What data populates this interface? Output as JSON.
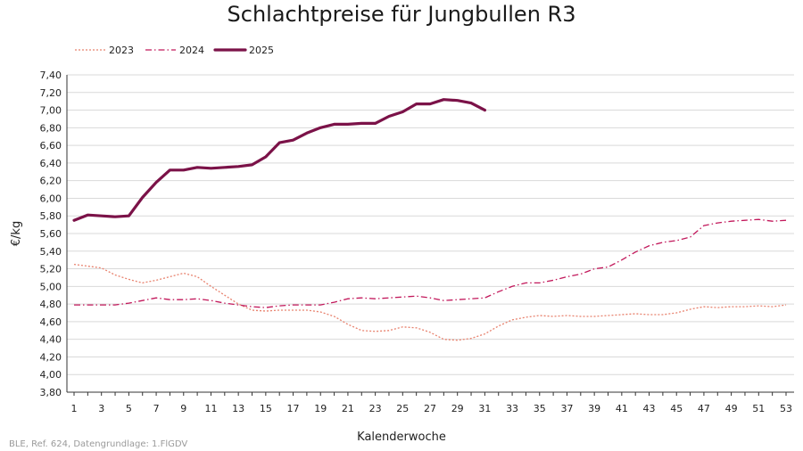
{
  "chart_data": {
    "type": "line",
    "title": "Schlachtpreise für Jungbullen R3",
    "xlabel": "Kalenderwoche",
    "ylabel": "€/kg",
    "xlim": [
      1,
      53
    ],
    "ylim": [
      3.8,
      7.4
    ],
    "y_ticks": [
      "3,80",
      "4,00",
      "4,20",
      "4,40",
      "4,60",
      "4,80",
      "5,00",
      "5,20",
      "5,40",
      "5,60",
      "5,80",
      "6,00",
      "6,20",
      "6,40",
      "6,60",
      "6,80",
      "7,00",
      "7,20",
      "7,40"
    ],
    "x_ticks": [
      "1",
      "3",
      "5",
      "7",
      "9",
      "11",
      "13",
      "15",
      "17",
      "19",
      "21",
      "23",
      "25",
      "27",
      "29",
      "31",
      "33",
      "35",
      "37",
      "39",
      "41",
      "43",
      "45",
      "47",
      "49",
      "51",
      "53"
    ],
    "grid": "horizontal",
    "legend_position": "top-left",
    "series": [
      {
        "name": "2023",
        "color": "#e8826e",
        "style": "dotted",
        "x": [
          1,
          2,
          3,
          4,
          5,
          6,
          7,
          8,
          9,
          10,
          11,
          12,
          13,
          14,
          15,
          16,
          17,
          18,
          19,
          20,
          21,
          22,
          23,
          24,
          25,
          26,
          27,
          28,
          29,
          30,
          31,
          32,
          33,
          34,
          35,
          36,
          37,
          38,
          39,
          40,
          41,
          42,
          43,
          44,
          45,
          46,
          47,
          48,
          49,
          50,
          51,
          52,
          53
        ],
        "values": [
          5.25,
          5.23,
          5.21,
          5.13,
          5.08,
          5.04,
          5.07,
          5.11,
          5.15,
          5.11,
          5.0,
          4.9,
          4.8,
          4.73,
          4.72,
          4.73,
          4.73,
          4.73,
          4.71,
          4.66,
          4.57,
          4.5,
          4.49,
          4.5,
          4.54,
          4.53,
          4.48,
          4.4,
          4.39,
          4.41,
          4.46,
          4.55,
          4.62,
          4.65,
          4.67,
          4.66,
          4.67,
          4.66,
          4.66,
          4.67,
          4.68,
          4.69,
          4.68,
          4.68,
          4.7,
          4.74,
          4.77,
          4.76,
          4.77,
          4.77,
          4.78,
          4.77,
          4.79
        ]
      },
      {
        "name": "2024",
        "color": "#c2185b",
        "style": "dash-dot",
        "x": [
          1,
          2,
          3,
          4,
          5,
          6,
          7,
          8,
          9,
          10,
          11,
          12,
          13,
          14,
          15,
          16,
          17,
          18,
          19,
          20,
          21,
          22,
          23,
          24,
          25,
          26,
          27,
          28,
          29,
          30,
          31,
          32,
          33,
          34,
          35,
          36,
          37,
          38,
          39,
          40,
          41,
          42,
          43,
          44,
          45,
          46,
          47,
          48,
          49,
          50,
          51,
          52,
          53
        ],
        "values": [
          4.79,
          4.79,
          4.79,
          4.79,
          4.81,
          4.84,
          4.87,
          4.85,
          4.85,
          4.86,
          4.84,
          4.81,
          4.79,
          4.77,
          4.76,
          4.78,
          4.79,
          4.79,
          4.79,
          4.82,
          4.86,
          4.87,
          4.86,
          4.87,
          4.88,
          4.89,
          4.87,
          4.84,
          4.85,
          4.86,
          4.87,
          4.94,
          5.0,
          5.04,
          5.04,
          5.07,
          5.11,
          5.14,
          5.2,
          5.22,
          5.3,
          5.39,
          5.46,
          5.5,
          5.52,
          5.56,
          5.69,
          5.72,
          5.74,
          5.75,
          5.76,
          5.74,
          5.75
        ]
      },
      {
        "name": "2025",
        "color": "#7b1248",
        "style": "solid-bold",
        "x": [
          1,
          2,
          3,
          4,
          5,
          6,
          7,
          8,
          9,
          10,
          11,
          12,
          13,
          14,
          15,
          16,
          17,
          18,
          19,
          20,
          21,
          22,
          23,
          24,
          25,
          26,
          27,
          28,
          29,
          30,
          31
        ],
        "values": [
          5.75,
          5.81,
          5.8,
          5.79,
          5.8,
          6.01,
          6.18,
          6.32,
          6.32,
          6.35,
          6.34,
          6.35,
          6.36,
          6.38,
          6.47,
          6.63,
          6.66,
          6.74,
          6.8,
          6.84,
          6.84,
          6.85,
          6.85,
          6.93,
          6.98,
          7.07,
          7.07,
          7.12,
          7.11,
          7.08,
          7.0
        ]
      }
    ]
  },
  "source": "BLE, Ref. 624, Datengrundlage: 1.FlGDV"
}
